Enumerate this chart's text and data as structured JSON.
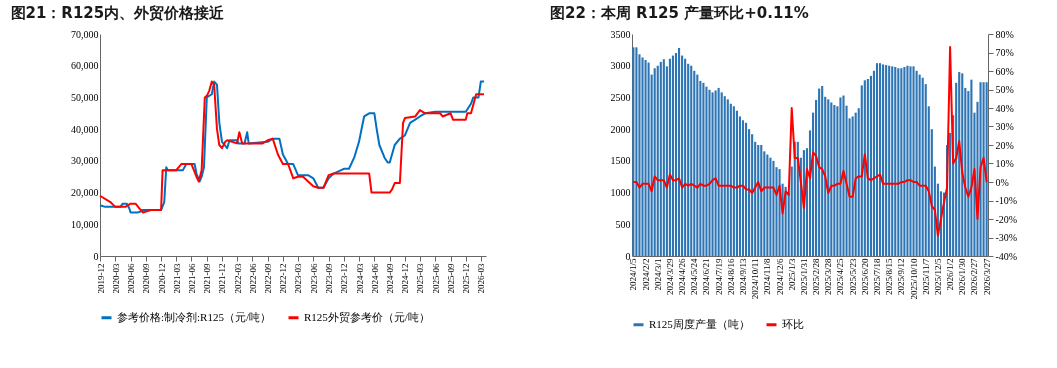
{
  "chart_data": [
    {
      "type": "line",
      "title": "图21：R125内、外贸价格接近",
      "legend": "bottom",
      "xlim": [
        "2019-12",
        "2026-04"
      ],
      "xticks": [
        "2019-12",
        "2020-03",
        "2020-06",
        "2020-09",
        "2020-12",
        "2021-03",
        "2021-06",
        "2021-09",
        "2021-12",
        "2022-03",
        "2022-06",
        "2022-09",
        "2022-12",
        "2023-03",
        "2023-06",
        "2023-09",
        "2023-12",
        "2024-03",
        "2024-06",
        "2024-09",
        "2024-12",
        "2025-03",
        "2025-06",
        "2025-09",
        "2025-12",
        "2026-03"
      ],
      "ylim": [
        0,
        70000
      ],
      "yticks": [
        {
          "value": 0,
          "label": "0"
        },
        {
          "value": 10000,
          "label": "10,000"
        },
        {
          "value": 20000,
          "label": "20,000"
        },
        {
          "value": 30000,
          "label": "30,000"
        },
        {
          "value": 40000,
          "label": "40,000"
        },
        {
          "value": 50000,
          "label": "50,000"
        },
        {
          "value": 60000,
          "label": "60,000"
        },
        {
          "value": 70000,
          "label": "70,000"
        }
      ],
      "series": [
        {
          "name": "参考价格:制冷剂:R125（元/吨）",
          "color": "#0070c0",
          "x": [
            "2019-12",
            "2020-01",
            "2020-04",
            "2020-04-15",
            "2020-05-10",
            "2020-05-25",
            "2020-06",
            "2020-07-10",
            "2020-08",
            "2020-08-10",
            "2020-12",
            "2020-12-20",
            "2021-01",
            "2021-01-10",
            "2021-03",
            "2021-04-10",
            "2021-05",
            "2021-06-20",
            "2021-07",
            "2021-07-20",
            "2021-08",
            "2021-08-15",
            "2021-09",
            "2021-10",
            "2021-10-15",
            "2021-11",
            "2021-11-15",
            "2021-12",
            "2022-01",
            "2022-01-15",
            "2022-03",
            "2022-03-10",
            "2022-04-15",
            "2022-05",
            "2022-05-10",
            "2022-09",
            "2022-10",
            "2022-11-10",
            "2022-12",
            "2023-01",
            "2023-02",
            "2023-03",
            "2023-05",
            "2023-06",
            "2023-07",
            "2023-08",
            "2023-09",
            "2023-10",
            "2023-12",
            "2024-01",
            "2024-02",
            "2024-03",
            "2024-03-20",
            "2024-04",
            "2024-05",
            "2024-06",
            "2024-06-15",
            "2024-07",
            "2024-08",
            "2024-08-20",
            "2024-09",
            "2024-10",
            "2024-11",
            "2024-12",
            "2025-01",
            "2025-02",
            "2025-03",
            "2025-04",
            "2025-06",
            "2025-12",
            "2026-01",
            "2026-01-15",
            "2026-02-15",
            "2026-03",
            "2026-03-20"
          ],
          "values": [
            16000,
            15500,
            15500,
            16500,
            16500,
            15000,
            13700,
            13700,
            14000,
            14500,
            14500,
            17000,
            28000,
            27000,
            27000,
            27000,
            29000,
            29000,
            26000,
            23500,
            25000,
            28000,
            50000,
            51000,
            55000,
            54000,
            42000,
            36000,
            34000,
            36500,
            36500,
            35500,
            35500,
            39000,
            35500,
            36000,
            37000,
            37000,
            32000,
            29000,
            29000,
            25500,
            25500,
            24500,
            21500,
            21500,
            24500,
            26000,
            27500,
            27500,
            31000,
            36000,
            41000,
            44000,
            45000,
            45000,
            40000,
            35000,
            31000,
            29500,
            29500,
            35000,
            37000,
            38000,
            42000,
            43000,
            44000,
            45000,
            45500,
            45500,
            48000,
            50000,
            50000,
            55000,
            55000
          ]
        },
        {
          "name": "R125外贸参考价（元/吨）",
          "color": "#ff0000",
          "x": [
            "2019-12",
            "2020-02",
            "2020-03",
            "2020-05",
            "2020-06",
            "2020-07",
            "2020-08",
            "2020-08-15",
            "2020-09",
            "2020-10",
            "2020-12",
            "2020-12-10",
            "2021-03",
            "2021-04",
            "2021-06",
            "2021-07",
            "2021-07-15",
            "2021-08",
            "2021-08-20",
            "2021-09",
            "2021-09-15",
            "2021-10",
            "2021-10-15",
            "2021-11",
            "2021-11-15",
            "2021-12",
            "2021-12-20",
            "2022-01",
            "2022-03",
            "2022-03-15",
            "2022-04",
            "2022-08",
            "2022-09",
            "2022-10",
            "2022-11",
            "2022-12",
            "2023-01",
            "2023-02",
            "2023-03",
            "2023-04",
            "2023-05",
            "2023-06",
            "2023-07",
            "2023-08",
            "2023-09",
            "2023-10",
            "2024-05",
            "2024-05-15",
            "2024-09",
            "2024-09-15",
            "2024-10",
            "2024-11",
            "2024-11-20",
            "2024-12",
            "2025-02",
            "2025-03",
            "2025-04",
            "2025-07",
            "2025-07-15",
            "2025-09",
            "2025-09-15",
            "2025-12",
            "2025-12-10",
            "2026-01",
            "2026-02",
            "2026-03-20"
          ],
          "values": [
            19000,
            17000,
            15500,
            15500,
            16500,
            16500,
            14500,
            13700,
            14000,
            14500,
            14500,
            27000,
            27000,
            29000,
            29000,
            25000,
            23500,
            27000,
            50000,
            50500,
            52000,
            55000,
            54000,
            40000,
            35000,
            34000,
            36000,
            36500,
            35500,
            39000,
            35500,
            35500,
            36500,
            37000,
            32000,
            29000,
            29000,
            24500,
            25000,
            25000,
            23500,
            22000,
            21500,
            21500,
            25500,
            26000,
            26000,
            20000,
            20000,
            21000,
            23000,
            23000,
            42000,
            43500,
            44000,
            46000,
            45000,
            45000,
            44000,
            45000,
            43000,
            43000,
            45000,
            45000,
            51000,
            51000
          ]
        }
      ]
    },
    {
      "type": "bar",
      "title": "图22：本周 R125 产量环比+0.11%",
      "legend": "bottom",
      "categories": [
        "2024/1/5",
        null,
        null,
        null,
        "2024/2/2",
        null,
        null,
        null,
        "2024/3/1",
        null,
        null,
        null,
        "2024/3/29",
        null,
        null,
        null,
        "2024/4/26",
        null,
        null,
        null,
        "2024/5/24",
        null,
        null,
        null,
        "2024/6/21",
        null,
        null,
        null,
        "2024/7/19",
        null,
        null,
        null,
        "2024/8/16",
        null,
        null,
        null,
        "2024/9/13",
        null,
        null,
        null,
        "2024/10/11",
        null,
        null,
        null,
        "2024/11/8",
        null,
        null,
        null,
        "2024/12/6",
        null,
        null,
        null,
        "2025/1/3",
        null,
        null,
        null,
        "2025/1/31",
        null,
        null,
        null,
        "2025/2/28",
        null,
        null,
        null,
        "2025/3/28",
        null,
        null,
        null,
        "2025/4/25",
        null,
        null,
        null,
        "2025/5/23",
        null,
        null,
        null,
        "2025/6/20",
        null,
        null,
        null,
        "2025/7/18",
        null,
        null,
        null,
        "2025/8/15",
        null,
        null,
        null,
        "2025/9/12",
        null,
        null,
        null,
        "2025/10/10",
        null,
        null,
        null,
        "2025/11/7",
        null,
        null,
        null,
        "2025/12/5",
        null,
        null,
        null,
        "2026/1/2",
        null,
        null,
        null,
        "2026/1/30",
        null,
        null,
        null,
        "2026/2/27",
        null,
        null,
        null,
        "2026/3/27"
      ],
      "ylim": [
        0,
        3500
      ],
      "yticks": [
        0,
        500,
        1000,
        1500,
        2000,
        2500,
        3000,
        3500
      ],
      "y2lim": [
        -40,
        80
      ],
      "y2ticks": [
        {
          "value": -40,
          "label": "-40%"
        },
        {
          "value": -30,
          "label": "-30%"
        },
        {
          "value": -20,
          "label": "-20%"
        },
        {
          "value": -10,
          "label": "-10%"
        },
        {
          "value": 0,
          "label": "0%"
        },
        {
          "value": 10,
          "label": "10%"
        },
        {
          "value": 20,
          "label": "20%"
        },
        {
          "value": 30,
          "label": "30%"
        },
        {
          "value": 40,
          "label": "40%"
        },
        {
          "value": 50,
          "label": "50%"
        },
        {
          "value": 60,
          "label": "60%"
        },
        {
          "value": 70,
          "label": "70%"
        },
        {
          "value": 80,
          "label": "80%"
        }
      ],
      "series": [
        {
          "name": "R125周度产量（吨）",
          "type": "bar",
          "color": "#2e75b6",
          "values": [
            3290,
            3290,
            3180,
            3130,
            3090,
            3050,
            2860,
            2960,
            3000,
            3060,
            3100,
            2990,
            3110,
            3160,
            3200,
            3280,
            3160,
            3110,
            3030,
            3000,
            2920,
            2860,
            2760,
            2730,
            2670,
            2620,
            2580,
            2610,
            2650,
            2580,
            2520,
            2470,
            2400,
            2360,
            2290,
            2200,
            2140,
            2100,
            2000,
            1920,
            1800,
            1750,
            1750,
            1650,
            1600,
            1550,
            1500,
            1400,
            1370,
            1140,
            1090,
            1000,
            1410,
            1800,
            1800,
            1550,
            1670,
            1700,
            1980,
            2260,
            2460,
            2640,
            2680,
            2510,
            2470,
            2420,
            2380,
            2360,
            2500,
            2530,
            2370,
            2170,
            2200,
            2260,
            2330,
            2690,
            2770,
            2790,
            2840,
            2920,
            3040,
            3040,
            3020,
            3010,
            3000,
            2990,
            2980,
            2960,
            2960,
            2980,
            3000,
            2990,
            2990,
            2920,
            2860,
            2810,
            2710,
            2360,
            2000,
            1410,
            1140,
            1020,
            1000,
            1750,
            1940,
            2220,
            2730,
            2900,
            2880,
            2650,
            2600,
            2780,
            2260,
            2430,
            2740,
            2740,
            2740
          ]
        },
        {
          "name": "环比",
          "type": "line",
          "axis": "y2",
          "color": "#ff0000",
          "values": [
            0,
            0,
            -3,
            -1,
            -1,
            -1,
            -5,
            3,
            1,
            1,
            1,
            -3,
            4,
            1,
            1,
            2,
            -3,
            -1,
            -2,
            -1,
            -2,
            -3,
            -1,
            -2,
            -2,
            -1,
            1,
            2,
            -2,
            -2,
            -2,
            -2,
            -2,
            -3,
            -3,
            -2,
            -2,
            -4,
            -4,
            -6,
            -3,
            0,
            -5,
            -3,
            -3,
            -3,
            -3,
            -7,
            -2,
            -17,
            -5,
            -7,
            40,
            13,
            13,
            0,
            -14,
            7,
            2,
            16,
            14,
            8,
            7,
            3,
            -6,
            -2,
            -2,
            -1,
            -1,
            6,
            -1,
            -8,
            -8,
            2,
            3,
            3,
            15,
            2,
            1,
            2,
            3,
            4,
            -1,
            -1,
            -1,
            -1,
            -1,
            -1,
            0,
            0,
            1,
            1,
            0,
            0,
            -2,
            -2,
            -2,
            -5,
            -13,
            -15,
            -29,
            -20,
            -11,
            -3,
            73,
            10,
            13,
            22,
            5,
            -3,
            -8,
            -3,
            7,
            -20,
            8,
            13,
            0
          ]
        }
      ]
    }
  ]
}
